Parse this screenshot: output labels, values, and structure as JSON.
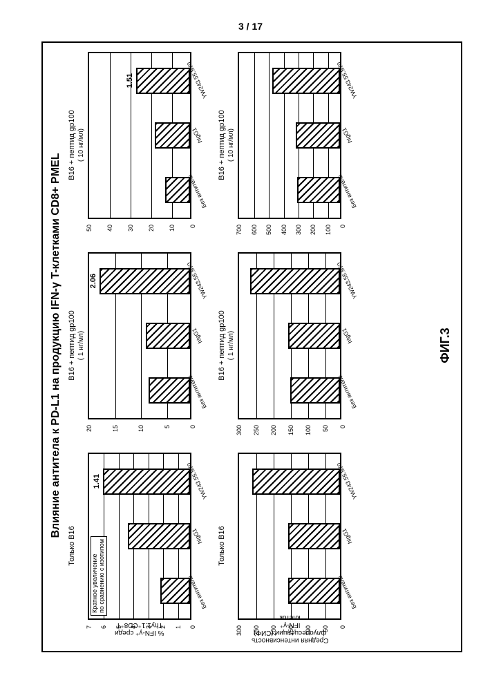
{
  "page_number": "3 / 17",
  "figure_label": "ФИГ.3",
  "main_title": "Влияние антитела к PD-L1 на продукцию IFN-γ  T-клетками CD8+ PMEL",
  "ylabels": {
    "row1": "% IFN-γ⁺ среди\nThy1.1⁺CD8⁺T",
    "row2": "Средняя интенсивность\nфлуоресценции  (СИФ)\n IFN-γ⁺\nклеток"
  },
  "x_categories": [
    "Без антитела",
    "hIgG1",
    "YW243.55.S70"
  ],
  "note_text": "Кратное увеличение\nпо сравнению с изотипом",
  "colors": {
    "bar_border": "#000000",
    "axis": "#000000",
    "bg": "#ffffff",
    "hatch": "#000000"
  },
  "panels": [
    {
      "row": 1,
      "col": 1,
      "title": "Только B16",
      "subtitle": "",
      "ymax": 7,
      "ystep": 1,
      "values": [
        2.0,
        4.2,
        5.9
      ],
      "annotation": {
        "bar": 2,
        "text": "1.41"
      },
      "note": true
    },
    {
      "row": 1,
      "col": 2,
      "title": "B16 + пептид gp100",
      "subtitle": "( 1 нг/мл)",
      "ymax": 20,
      "ystep": 5,
      "values": [
        8.0,
        8.5,
        17.5
      ],
      "annotation": {
        "bar": 2,
        "text": "2.06"
      }
    },
    {
      "row": 1,
      "col": 3,
      "title": "B16 + пептид gp100",
      "subtitle": "( 10 нг/мл)",
      "ymax": 50,
      "ystep": 10,
      "values": [
        12,
        17,
        26
      ],
      "annotation": {
        "bar": 2,
        "text": "1.51"
      }
    },
    {
      "row": 2,
      "col": 1,
      "title": "Только B16",
      "subtitle": "",
      "ymax": 300,
      "ystep": 50,
      "values": [
        150,
        150,
        255
      ]
    },
    {
      "row": 2,
      "col": 2,
      "title": "B16 + пептид gp100",
      "subtitle": "( 1 нг/мл)",
      "ymax": 300,
      "ystep": 50,
      "values": [
        145,
        150,
        260
      ]
    },
    {
      "row": 2,
      "col": 3,
      "title": "B16 + пептид gp100",
      "subtitle": "( 10 нг/мл)",
      "ymax": 700,
      "ystep": 100,
      "values": [
        290,
        300,
        460
      ]
    }
  ]
}
